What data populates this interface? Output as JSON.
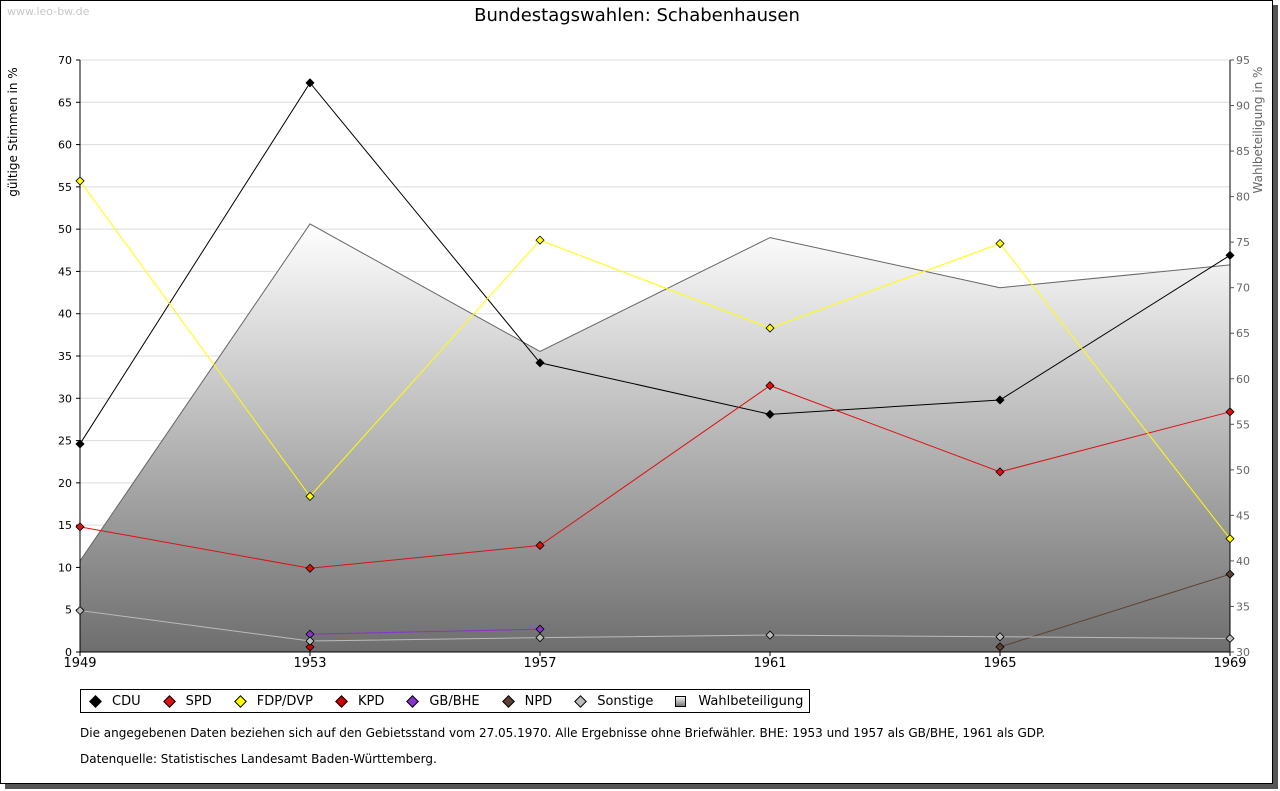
{
  "watermark": "www.leo-bw.de",
  "chart_data": {
    "type": "line",
    "title": "Bundestagswahlen: Schabenhausen",
    "ylabel": "gültige Stimmen in %",
    "y2label": "Wahlbeteiligung in %",
    "x": [
      "1949",
      "1953",
      "1957",
      "1961",
      "1965",
      "1969"
    ],
    "ylim": [
      0,
      70
    ],
    "yticks": [
      0,
      5,
      10,
      15,
      20,
      25,
      30,
      35,
      40,
      45,
      50,
      55,
      60,
      65,
      70
    ],
    "y2lim": [
      30,
      95
    ],
    "y2ticks": [
      30,
      35,
      40,
      45,
      50,
      55,
      60,
      65,
      70,
      75,
      80,
      85,
      90,
      95
    ],
    "area_series": {
      "name": "Wahlbeteiligung",
      "axis": "right",
      "values": [
        40.0,
        77.0,
        63.0,
        75.5,
        70.0,
        72.5
      ]
    },
    "series": [
      {
        "name": "CDU",
        "color": "#000000",
        "values": [
          24.6,
          67.3,
          34.2,
          28.1,
          29.8,
          46.9
        ]
      },
      {
        "name": "SPD",
        "color": "#dd1111",
        "values": [
          14.8,
          9.9,
          12.6,
          31.5,
          21.3,
          28.4
        ]
      },
      {
        "name": "FDP/DVP",
        "color": "#ffff00",
        "values": [
          55.7,
          18.4,
          48.7,
          38.3,
          48.3,
          13.4
        ]
      },
      {
        "name": "KPD",
        "color": "#cc0000",
        "values": [
          null,
          0.6,
          null,
          null,
          null,
          null
        ]
      },
      {
        "name": "GB/BHE",
        "color": "#8833cc",
        "values": [
          null,
          2.1,
          2.7,
          null,
          null,
          null
        ]
      },
      {
        "name": "NPD",
        "color": "#5c4033",
        "values": [
          null,
          null,
          null,
          null,
          0.6,
          9.2
        ]
      },
      {
        "name": "Sonstige",
        "color": "#bbbbbb",
        "values": [
          4.9,
          1.3,
          1.7,
          2.0,
          1.8,
          1.6
        ]
      }
    ],
    "legend_area_label": "Wahlbeteiligung",
    "notes": [
      "Die angegebenen Daten beziehen sich auf den Gebietsstand vom 27.05.1970. Alle Ergebnisse ohne Briefwähler. BHE: 1953 und 1957 als GB/BHE, 1961 als GDP.",
      "Datenquelle: Statistisches Landesamt Baden-Württemberg."
    ]
  }
}
